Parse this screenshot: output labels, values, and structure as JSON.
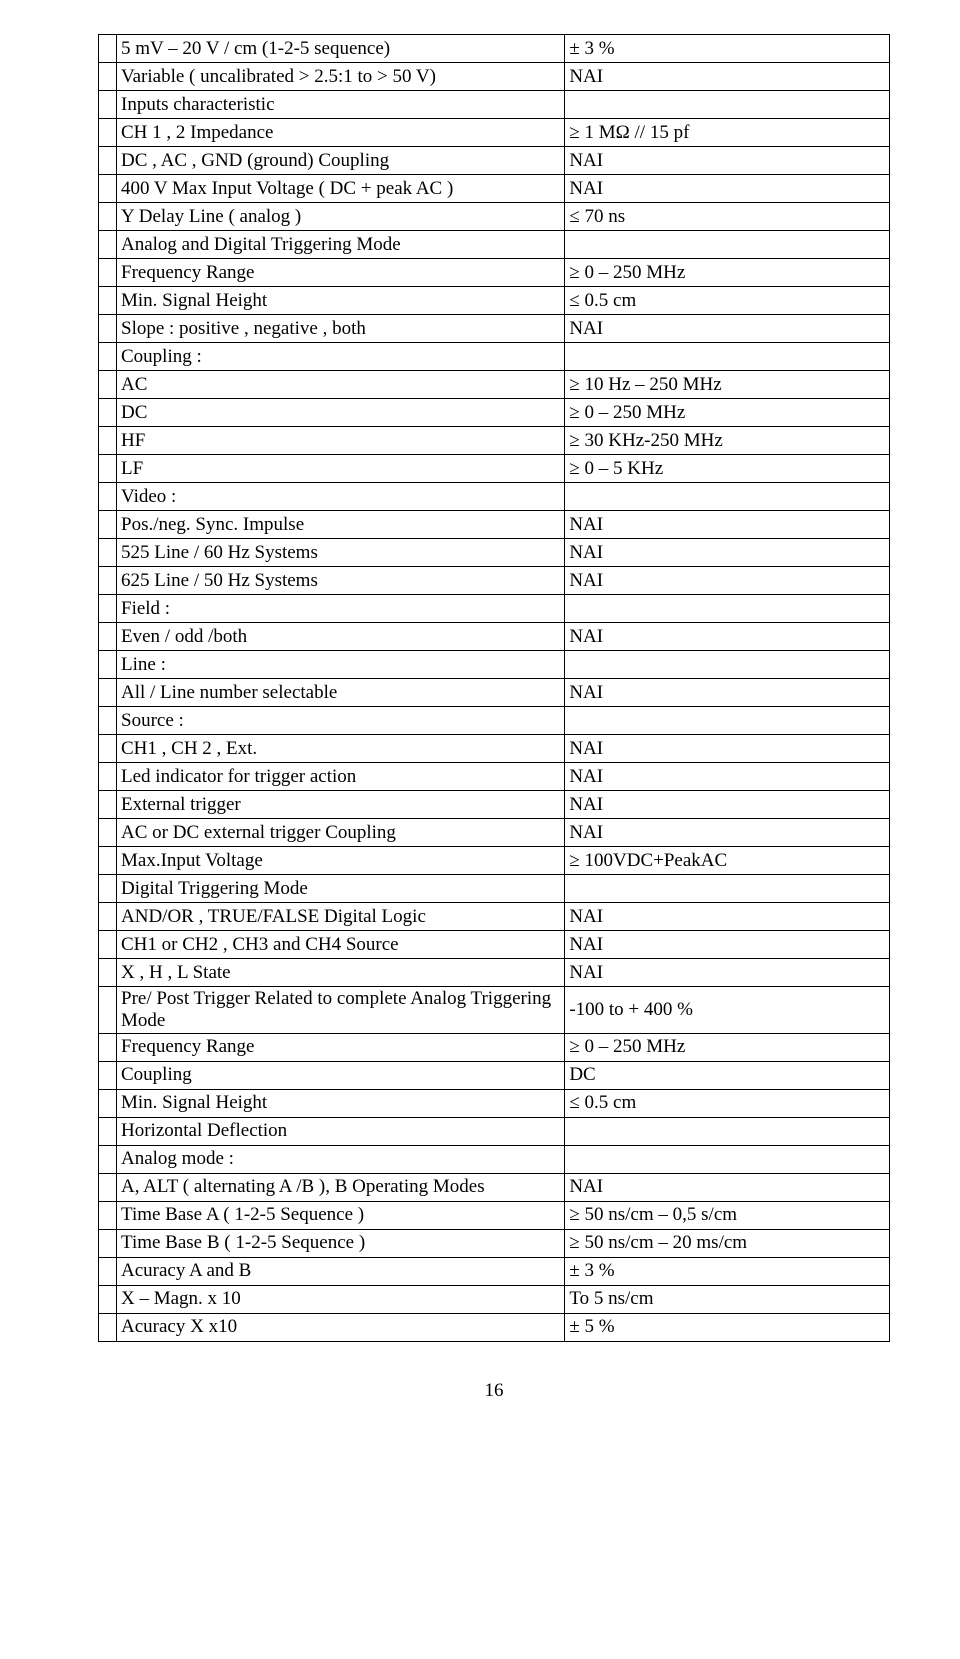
{
  "page_number": "16",
  "colors": {
    "background": "#ffffff",
    "text": "#000000",
    "border": "#000000"
  },
  "typography": {
    "font_family": "Times New Roman",
    "font_size_pt": 14
  },
  "rows": [
    {
      "left": "5 mV – 20 V / cm  (1-2-5 sequence)",
      "right": "± 3 %"
    },
    {
      "left": "Variable ( uncalibrated  > 2.5:1  to > 50 V)",
      "right": "NAI"
    },
    {
      "left": "Inputs characteristic",
      "right": ""
    },
    {
      "left": "CH 1 , 2  Impedance",
      "right": "≥ 1 MΩ // 15 pf"
    },
    {
      "left": "DC , AC , GND (ground) Coupling",
      "right": "NAI"
    },
    {
      "left": "400 V Max Input Voltage ( DC + peak AC )",
      "right": "NAI"
    },
    {
      "left": "Y Delay Line ( analog )",
      "right": "≤  70 ns"
    },
    {
      "left": "Analog and Digital Triggering Mode",
      "right": ""
    },
    {
      "left": "Frequency Range",
      "right": "≥ 0 – 250 MHz"
    },
    {
      "left": "Min. Signal Height",
      "right": "≤ 0.5 cm"
    },
    {
      "left": "Slope : positive , negative , both",
      "right": "NAI"
    },
    {
      "left": "Coupling :",
      "right": ""
    },
    {
      "left": "AC",
      "right": "≥ 10 Hz – 250 MHz"
    },
    {
      "left": "DC",
      "right": "≥ 0 – 250 MHz"
    },
    {
      "left": "HF",
      "right": "≥ 30 KHz-250 MHz"
    },
    {
      "left": "LF",
      "right": "≥ 0 – 5 KHz"
    },
    {
      "left": "Video :",
      "right": ""
    },
    {
      "left": "Pos./neg. Sync. Impulse",
      "right": "NAI"
    },
    {
      "left": "525 Line / 60 Hz Systems",
      "right": "NAI"
    },
    {
      "left": "625 Line / 50 Hz Systems",
      "right": "NAI"
    },
    {
      "left": "Field :",
      "right": ""
    },
    {
      "left": "Even / odd /both",
      "right": "NAI"
    },
    {
      "left": "Line :",
      "right": ""
    },
    {
      "left": "All / Line number selectable",
      "right": "NAI"
    },
    {
      "left": "Source :",
      "right": ""
    },
    {
      "left": "CH1 , CH 2 , Ext.",
      "right": "NAI"
    },
    {
      "left": "Led indicator for trigger action",
      "right": "NAI"
    },
    {
      "left": "External trigger",
      "right": "NAI"
    },
    {
      "left": "AC or DC external trigger Coupling",
      "right": "NAI"
    },
    {
      "left": "Max.Input Voltage",
      "right": "≥ 100VDC+PeakAC"
    },
    {
      "left": "Digital Triggering Mode",
      "right": ""
    },
    {
      "left": "AND/OR , TRUE/FALSE Digital Logic",
      "right": "NAI"
    },
    {
      "left": "CH1 or CH2 , CH3 and CH4 Source",
      "right": "NAI"
    },
    {
      "left": " X , H , L  State",
      "right": "NAI"
    },
    {
      "left": " Pre/  Post  Trigger  Related  to  complete Analog Triggering Mode",
      "right": "-100 to + 400 %"
    },
    {
      "left": "Frequency Range",
      "right": "≥ 0 – 250 MHz"
    },
    {
      "left": " Coupling",
      "right": "DC"
    },
    {
      "left": "Min. Signal Height",
      "right": "≤ 0.5 cm"
    },
    {
      "left": "Horizontal Deflection",
      "right": ""
    },
    {
      "left": "Analog mode :",
      "right": ""
    },
    {
      "left": "A, ALT ( alternating A /B ), B Operating Modes",
      "right": "NAI"
    },
    {
      "left": "Time Base A ( 1-2-5 Sequence )",
      "right": "≥ 50 ns/cm – 0,5 s/cm"
    },
    {
      "left": "Time Base B ( 1-2-5 Sequence )",
      "right": "≥ 50 ns/cm – 20 ms/cm"
    },
    {
      "left": "Acuracy A and B",
      "right": "± 3 %"
    },
    {
      "left": " X – Magn. x 10",
      "right": "To 5 ns/cm"
    },
    {
      "left": "Acuracy X x10",
      "right": "± 5 %"
    }
  ]
}
